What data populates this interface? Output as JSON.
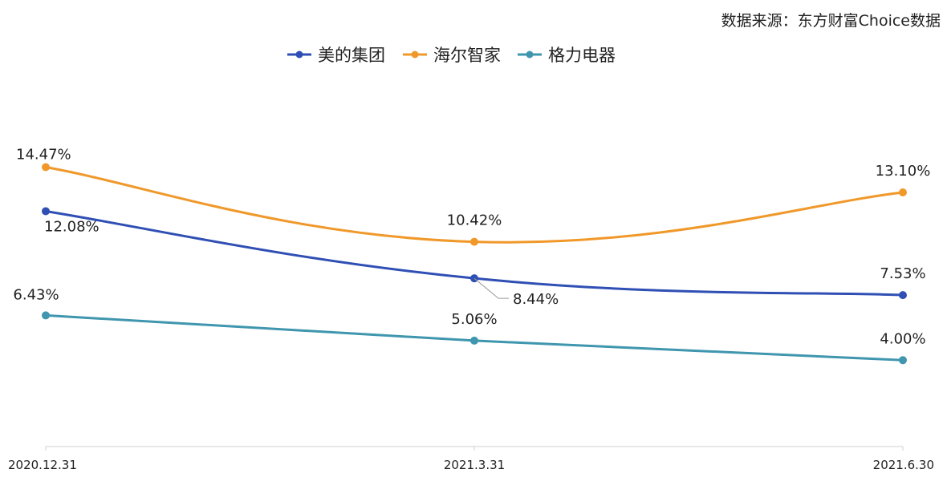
{
  "source_note": "数据来源：东方财富Choice数据",
  "chart_data": {
    "type": "line",
    "categories": [
      "2020.12.31",
      "2021.3.31",
      "2021.6.30"
    ],
    "series": [
      {
        "name": "美的集团",
        "color": "#2f4fb4",
        "values": [
          12.08,
          8.44,
          7.53
        ],
        "labels": [
          "12.08%",
          "8.44%",
          "7.53%"
        ]
      },
      {
        "name": "海尔智家",
        "color": "#f0982a",
        "values": [
          14.47,
          10.42,
          13.1
        ],
        "labels": [
          "14.47%",
          "10.42%",
          "13.10%"
        ]
      },
      {
        "name": "格力电器",
        "color": "#3f96ae",
        "values": [
          6.43,
          5.06,
          4.0
        ],
        "labels": [
          "6.43%",
          "5.06%",
          "4.00%"
        ]
      }
    ],
    "ylim": [
      0,
      20
    ],
    "grid": false,
    "legend_position": "top-center",
    "smooth": true
  }
}
